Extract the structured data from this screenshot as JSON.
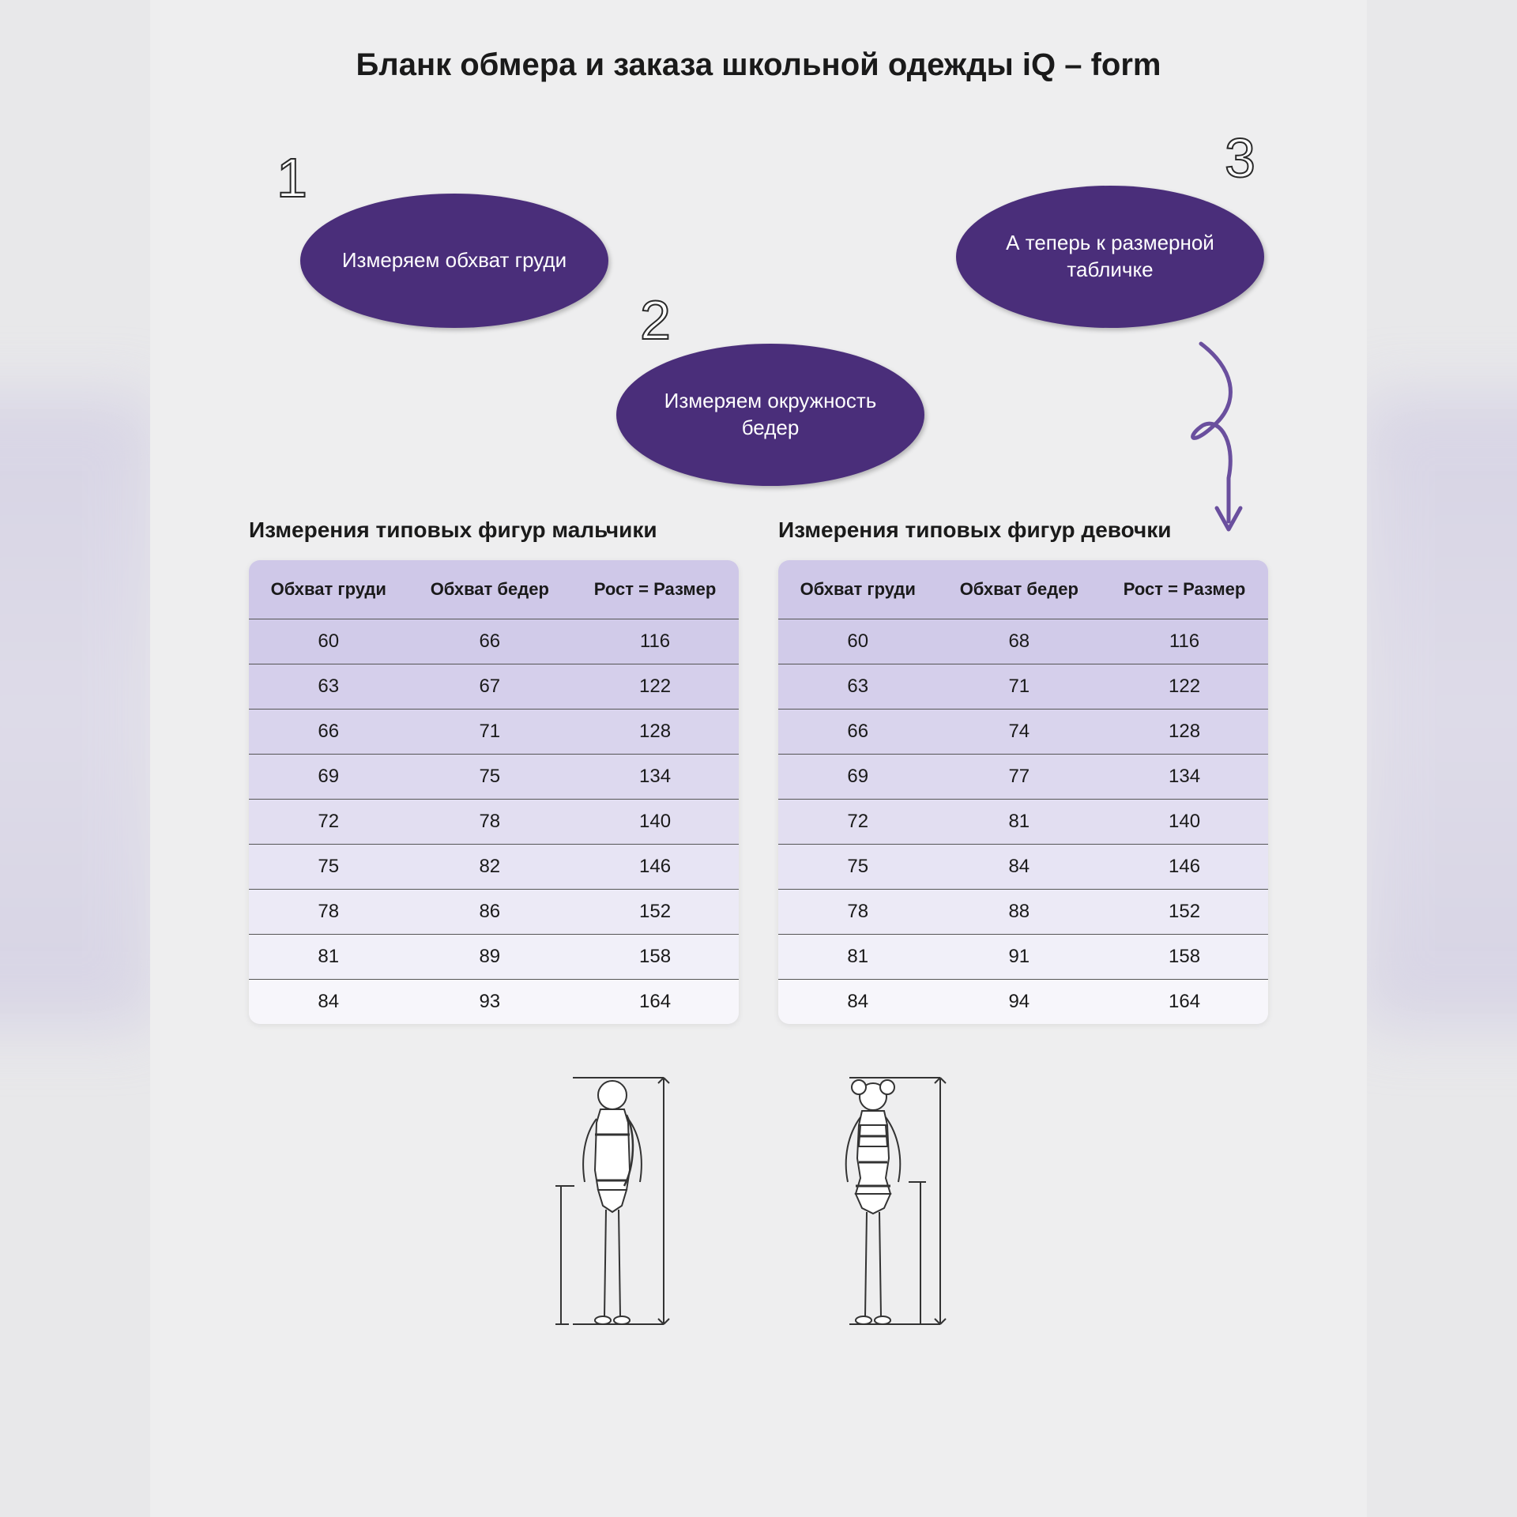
{
  "title": "Бланк обмера и заказа школьной одежды iQ – form",
  "colors": {
    "ellipse_bg": "#4a2e7a",
    "ellipse_text": "#ffffff",
    "page_bg": "#eeeeef",
    "header_bg": "#cfc8e8",
    "arrow": "#6a4f9e",
    "text": "#1a1a1a",
    "border": "#555555"
  },
  "steps": [
    {
      "num": "1",
      "text": "Измеряем обхват груди"
    },
    {
      "num": "2",
      "text": "Измеряем окружность бедер"
    },
    {
      "num": "3",
      "text": "А теперь к размерной табличке"
    }
  ],
  "tables": {
    "columns": [
      "Обхват груди",
      "Обхват бедер",
      "Рост = Размер"
    ],
    "boys": {
      "title": "Измерения типовых фигур мальчики",
      "rows": [
        [
          60,
          66,
          116
        ],
        [
          63,
          67,
          122
        ],
        [
          66,
          71,
          128
        ],
        [
          69,
          75,
          134
        ],
        [
          72,
          78,
          140
        ],
        [
          75,
          82,
          146
        ],
        [
          78,
          86,
          152
        ],
        [
          81,
          89,
          158
        ],
        [
          84,
          93,
          164
        ]
      ]
    },
    "girls": {
      "title": "Измерения типовых фигур девочки",
      "rows": [
        [
          60,
          68,
          116
        ],
        [
          63,
          71,
          122
        ],
        [
          66,
          74,
          128
        ],
        [
          69,
          77,
          134
        ],
        [
          72,
          81,
          140
        ],
        [
          75,
          84,
          146
        ],
        [
          78,
          88,
          152
        ],
        [
          81,
          91,
          158
        ],
        [
          84,
          94,
          164
        ]
      ]
    }
  },
  "typography": {
    "title_fontsize": 40,
    "step_num_fontsize": 70,
    "ellipse_fontsize": 26,
    "table_title_fontsize": 28,
    "th_fontsize": 22,
    "td_fontsize": 24
  }
}
